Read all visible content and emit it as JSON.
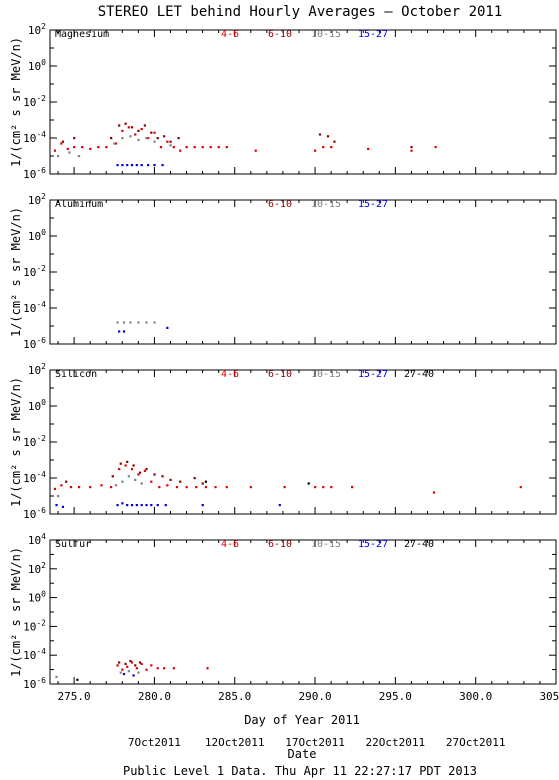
{
  "title": "STEREO LET behind Hourly Averages – October 2011",
  "ylabel": "1/(cm² s sr MeV/n)",
  "xlabel": "Day of Year 2011",
  "date_label": "Date",
  "date_ticks": [
    {
      "day": 280,
      "label": "7Oct2011"
    },
    {
      "day": 285,
      "label": "12Oct2011"
    },
    {
      "day": 290,
      "label": "17Oct2011"
    },
    {
      "day": 295,
      "label": "22Oct2011"
    },
    {
      "day": 300,
      "label": "27Oct2011"
    }
  ],
  "footer": "Public Level 1 Data. Thu Apr 11 22:27:17 PDT 2013",
  "colors": {
    "4-6": "#e00000",
    "6-10": "#8b0000",
    "10-15": "#808080",
    "15-27": "#0000dd",
    "27-40": "#000000"
  },
  "chart_data": [
    {
      "type": "scatter",
      "title": "Magnesium",
      "xlim": [
        273.5,
        305.0
      ],
      "xticks": [
        "275.0",
        "280.0",
        "285.0",
        "290.0",
        "295.0",
        "300.0",
        "305.0"
      ],
      "ylim_log10": [
        -6,
        2
      ],
      "yticks": [
        "10^-6",
        "10^-4",
        "10^-2",
        "10^0",
        "10^2"
      ],
      "legend": [
        "4-6",
        "6-10",
        "10-15",
        "15-27"
      ],
      "series": [
        {
          "name": "4-6",
          "x": [
            273.8,
            274.2,
            274.6,
            275.0,
            275.5,
            276.0,
            276.5,
            277.0,
            277.6,
            278.0,
            278.4,
            278.8,
            279.2,
            279.6,
            280.0,
            280.4,
            280.8,
            281.2,
            281.6,
            282.0,
            282.5,
            283.0,
            283.5,
            284.0,
            284.5,
            286.3,
            290.0,
            290.5,
            291.0,
            293.3,
            296.0,
            297.5
          ],
          "y": [
            -4.7,
            -4.3,
            -4.6,
            -4.5,
            -4.5,
            -4.6,
            -4.5,
            -4.5,
            -4.3,
            -3.6,
            -3.4,
            -3.8,
            -3.5,
            -4.0,
            -3.7,
            -4.5,
            -4.2,
            -4.5,
            -4.7,
            -4.5,
            -4.5,
            -4.5,
            -4.5,
            -4.5,
            -4.5,
            -4.7,
            -4.7,
            -4.5,
            -4.5,
            -4.6,
            -4.7,
            -4.5
          ]
        },
        {
          "name": "6-10",
          "x": [
            274.3,
            275.0,
            277.3,
            277.8,
            278.2,
            278.6,
            279.0,
            279.4,
            279.8,
            280.2,
            280.6,
            281.0,
            281.5,
            290.3,
            290.8,
            291.2,
            296.0
          ],
          "y": [
            -4.2,
            -4.0,
            -4.0,
            -3.3,
            -3.2,
            -3.4,
            -3.6,
            -3.3,
            -3.7,
            -4.0,
            -3.9,
            -4.2,
            -4.0,
            -3.8,
            -3.9,
            -4.2,
            -4.5
          ]
        },
        {
          "name": "10-15",
          "x": [
            274.0,
            274.7,
            275.3,
            277.5,
            278.0,
            278.5,
            279.0,
            279.5,
            280.0,
            281.0
          ],
          "y": [
            -5.0,
            -4.8,
            -5.0,
            -4.3,
            -4.0,
            -3.9,
            -4.1,
            -4.0,
            -4.2,
            -4.4
          ]
        },
        {
          "name": "15-27",
          "x": [
            277.7,
            278.0,
            278.3,
            278.6,
            278.9,
            279.2,
            279.6,
            280.0,
            280.5
          ],
          "y": [
            -5.5,
            -5.5,
            -5.5,
            -5.5,
            -5.5,
            -5.5,
            -5.5,
            -5.5,
            -5.5
          ]
        }
      ]
    },
    {
      "type": "scatter",
      "title": "Aluminum",
      "xlim": [
        273.5,
        305.0
      ],
      "xticks": [
        "275.0",
        "280.0",
        "285.0",
        "290.0",
        "295.0",
        "300.0",
        "305.0"
      ],
      "ylim_log10": [
        -6,
        2
      ],
      "yticks": [
        "10^-6",
        "10^-4",
        "10^-2",
        "10^0",
        "10^2"
      ],
      "legend": [
        "6-10",
        "10-15",
        "15-27"
      ],
      "series": [
        {
          "name": "10-15",
          "x": [
            277.7,
            278.1,
            278.5,
            279.0,
            279.5,
            280.0
          ],
          "y": [
            -4.8,
            -4.8,
            -4.8,
            -4.8,
            -4.8,
            -4.8
          ]
        },
        {
          "name": "15-27",
          "x": [
            277.8,
            278.1,
            280.8
          ],
          "y": [
            -5.3,
            -5.3,
            -5.1
          ]
        }
      ]
    },
    {
      "type": "scatter",
      "title": "Silicon",
      "xlim": [
        273.5,
        305.0
      ],
      "xticks": [
        "275.0",
        "280.0",
        "285.0",
        "290.0",
        "295.0",
        "300.0",
        "305.0"
      ],
      "ylim_log10": [
        -6,
        2
      ],
      "yticks": [
        "10^-6",
        "10^-4",
        "10^-2",
        "10^0",
        "10^2"
      ],
      "legend": [
        "4-6",
        "6-10",
        "10-15",
        "15-27",
        "27-40"
      ],
      "series": [
        {
          "name": "4-6",
          "x": [
            273.8,
            274.2,
            274.8,
            275.3,
            276.0,
            276.7,
            277.3,
            277.8,
            278.2,
            278.6,
            279.0,
            279.4,
            279.8,
            280.3,
            280.8,
            281.4,
            282.0,
            282.6,
            283.2,
            283.8,
            284.5,
            286.0,
            288.1,
            290.0,
            290.5,
            291.0,
            292.3,
            297.4,
            302.8
          ],
          "y": [
            -4.6,
            -4.4,
            -4.5,
            -4.5,
            -4.5,
            -4.4,
            -4.5,
            -3.5,
            -3.3,
            -3.5,
            -3.8,
            -3.6,
            -4.2,
            -4.5,
            -4.4,
            -4.5,
            -4.5,
            -4.5,
            -4.5,
            -4.5,
            -4.5,
            -4.5,
            -4.5,
            -4.5,
            -4.5,
            -4.5,
            -4.5,
            -4.8,
            -4.5
          ]
        },
        {
          "name": "6-10",
          "x": [
            274.5,
            277.4,
            277.9,
            278.3,
            278.7,
            279.1,
            279.5,
            280.0,
            280.5,
            281.0,
            281.6,
            282.5,
            283.0
          ],
          "y": [
            -4.2,
            -3.9,
            -3.2,
            -3.1,
            -3.3,
            -3.7,
            -3.5,
            -3.8,
            -3.9,
            -4.1,
            -4.2,
            -4.0,
            -4.3
          ]
        },
        {
          "name": "10-15",
          "x": [
            274.0,
            277.6,
            278.0,
            278.4,
            278.8,
            279.2
          ],
          "y": [
            -5.0,
            -4.4,
            -4.2,
            -3.9,
            -4.1,
            -4.3
          ]
        },
        {
          "name": "15-27",
          "x": [
            273.9,
            274.3,
            277.7,
            278.0,
            278.3,
            278.6,
            278.9,
            279.2,
            279.5,
            279.8,
            280.2,
            280.7,
            283.0,
            287.8
          ],
          "y": [
            -5.5,
            -5.6,
            -5.5,
            -5.4,
            -5.5,
            -5.5,
            -5.5,
            -5.5,
            -5.5,
            -5.5,
            -5.5,
            -5.5,
            -5.5,
            -5.5
          ]
        },
        {
          "name": "27-40",
          "x": [
            283.2,
            289.6
          ],
          "y": [
            -4.2,
            -4.3
          ]
        }
      ]
    },
    {
      "type": "scatter",
      "title": "Sulfur",
      "xlim": [
        273.5,
        305.0
      ],
      "xticks": [
        "275.0",
        "280.0",
        "285.0",
        "290.0",
        "295.0",
        "300.0",
        "305.0"
      ],
      "ylim_log10": [
        -6,
        4
      ],
      "yticks": [
        "10^-6",
        "10^-4",
        "10^-2",
        "10^0",
        "10^2",
        "10^4"
      ],
      "legend": [
        "4-6",
        "6-10",
        "10-15",
        "15-27",
        "27-40"
      ],
      "series": [
        {
          "name": "4-6",
          "x": [
            277.7,
            278.0,
            278.3,
            278.6,
            278.9,
            279.2,
            279.5,
            279.8,
            280.2,
            280.6,
            281.2,
            283.3
          ],
          "y": [
            -4.7,
            -5.0,
            -4.8,
            -4.5,
            -4.9,
            -4.6,
            -5.0,
            -4.7,
            -4.9,
            -4.9,
            -4.9,
            -4.9
          ]
        },
        {
          "name": "6-10",
          "x": [
            277.8,
            278.2,
            278.5,
            278.8,
            279.1
          ],
          "y": [
            -4.5,
            -4.6,
            -4.4,
            -4.7,
            -4.5
          ]
        },
        {
          "name": "10-15",
          "x": [
            273.9,
            277.9,
            278.4,
            279.0
          ],
          "y": [
            -5.5,
            -5.2,
            -5.1,
            -5.2
          ]
        },
        {
          "name": "15-27",
          "x": [
            278.1,
            278.7
          ],
          "y": [
            -5.3,
            -5.4
          ]
        },
        {
          "name": "27-40",
          "x": [
            275.2
          ],
          "y": [
            -5.7
          ]
        }
      ]
    }
  ]
}
